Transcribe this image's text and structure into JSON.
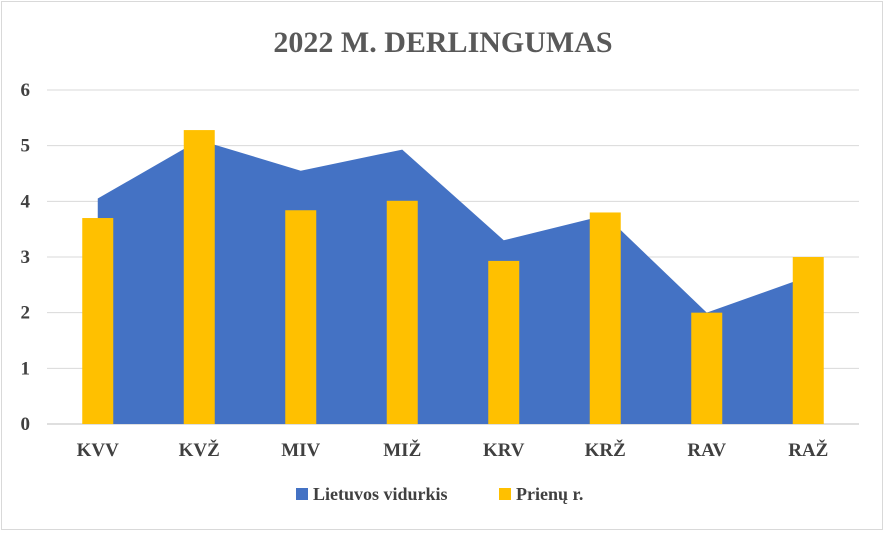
{
  "chart_data": {
    "type": "bar",
    "title": "2022 M. DERLINGUMAS",
    "categories": [
      "KVV",
      "KVŽ",
      "MIV",
      "MIŽ",
      "KRV",
      "KRŽ",
      "RAV",
      "RAŽ"
    ],
    "series": [
      {
        "name": "Lietuvos vidurkis",
        "type": "area",
        "color": "#4472C4",
        "values": [
          4.05,
          5.1,
          4.55,
          4.93,
          3.3,
          3.75,
          2.0,
          2.65
        ]
      },
      {
        "name": "Prienų r.",
        "type": "bar",
        "color": "#FFC000",
        "values": [
          3.7,
          5.28,
          3.84,
          4.01,
          2.93,
          3.8,
          2.0,
          3.0
        ]
      }
    ],
    "yticks": [
      "0",
      "1",
      "2",
      "3",
      "4",
      "5",
      "6"
    ],
    "ylim": [
      0,
      6
    ],
    "grid": true,
    "legend": "bottom"
  }
}
